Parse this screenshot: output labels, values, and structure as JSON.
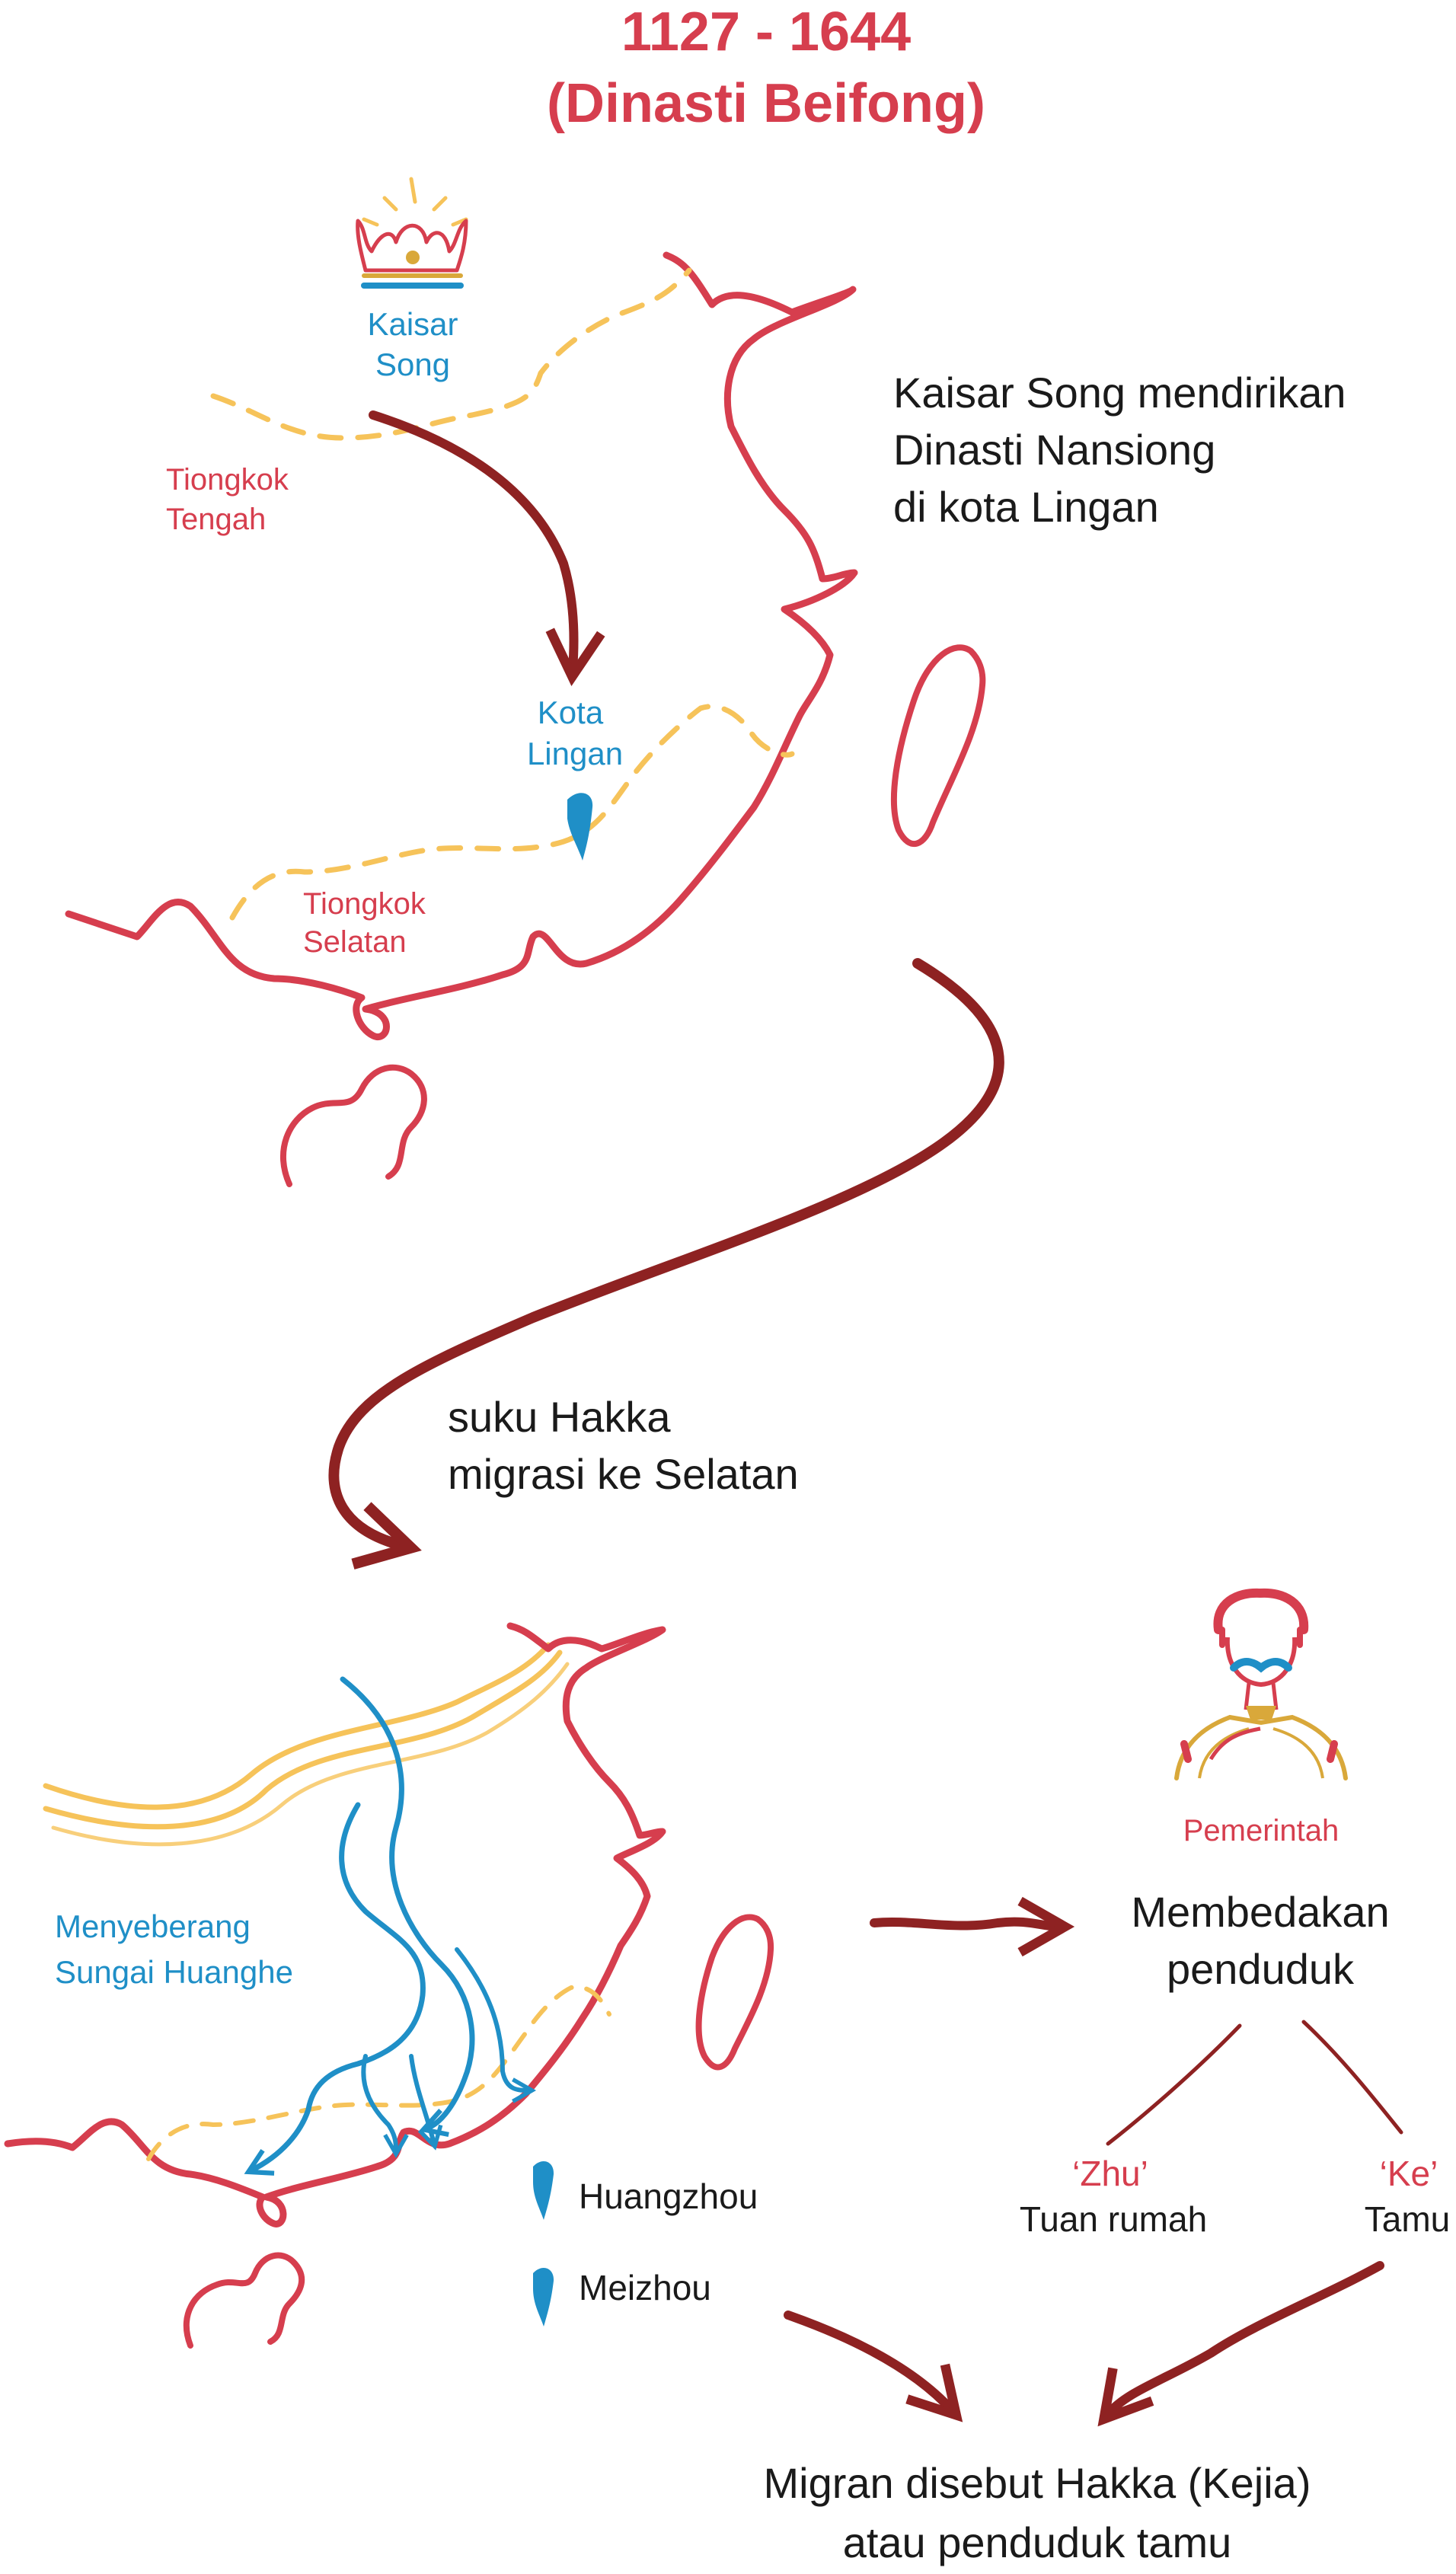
{
  "title": {
    "years": "1127 - 1644",
    "dynasty": "(Dinasti Beifong)"
  },
  "top_map": {
    "emperor_label_1": "Kaisar",
    "emperor_label_2": "Song",
    "region_north_1": "Tiongkok",
    "region_north_2": "Tengah",
    "city_label_1": "Kota",
    "city_label_2": "Lingan",
    "region_south_1": "Tiongkok",
    "region_south_2": "Selatan",
    "caption_line_1": "Kaisar Song mendirikan",
    "caption_line_2": "Dinasti Nansiong",
    "caption_line_3": "di kota Lingan"
  },
  "migration": {
    "line_1": "suku Hakka",
    "line_2": "migrasi ke Selatan"
  },
  "bottom_map": {
    "river_label_1": "Menyeberang",
    "river_label_2": "Sungai Huanghe",
    "legend_1": "Huangzhou",
    "legend_2": "Meizhou"
  },
  "government": {
    "label": "Pemerintah",
    "action_1": "Membedakan",
    "action_2": "penduduk",
    "zhu_term": "‘Zhu’",
    "zhu_meaning": "Tuan rumah",
    "ke_term": "‘Ke’",
    "ke_meaning": "Tamu"
  },
  "conclusion": {
    "line_1": "Migran disebut Hakka (Kejia)",
    "line_2": "atau penduduk tamu"
  },
  "colors": {
    "red": "#d63e4e",
    "blue": "#1f8fc7",
    "yellow": "#f6c35a",
    "dark_red": "#8e2222",
    "text": "#1a1a1a"
  }
}
